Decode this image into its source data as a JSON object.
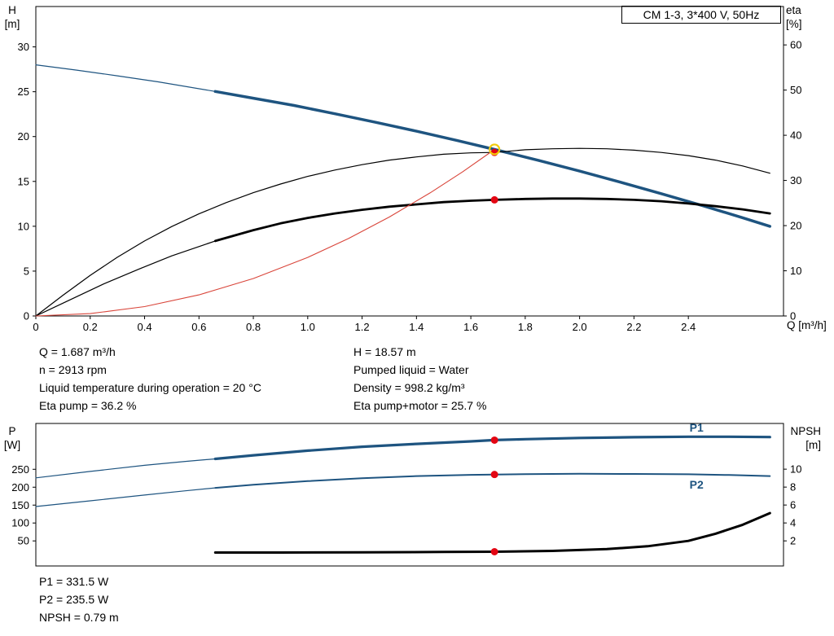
{
  "axis_labels": {
    "h": "H",
    "h_unit": "[m]",
    "eta": "eta",
    "eta_unit": "[%]",
    "q": "Q [m³/h]",
    "p": "P",
    "p_unit": "[W]",
    "npsh": "NPSH",
    "npsh_unit": "[m]"
  },
  "info_top": {
    "left": [
      "Q = 1.687 m³/h",
      "n = 2913 rpm",
      "Liquid temperature during operation = 20 °C",
      "Eta pump = 36.2 %"
    ],
    "right": [
      "H = 18.57 m",
      "Pumped liquid = Water",
      "Density = 998.2 kg/m³",
      "Eta pump+motor = 25.7 %"
    ]
  },
  "info_bottom": [
    "P1 = 331.5 W",
    "P2 = 235.5 W",
    "NPSH = 0.79 m"
  ],
  "colors": {
    "curve_blue": "#1e5480",
    "curve_black": "#000000",
    "curve_red": "#d9453a",
    "dot_red": "#e30613",
    "ring_yellow": "#f2cc0c"
  },
  "chart_data": [
    {
      "type": "line",
      "title": "CM 1-3, 3*400 V, 50Hz",
      "x_axis": {
        "min": 0,
        "max": 2.75,
        "label": "Q [m³/h]",
        "ticks": [
          [
            0,
            "0"
          ],
          [
            0.2,
            "0.2"
          ],
          [
            0.4,
            "0.4"
          ],
          [
            0.6,
            "0.6"
          ],
          [
            0.8,
            "0.8"
          ],
          [
            1,
            "1.0"
          ],
          [
            1.2,
            "1.2"
          ],
          [
            1.4,
            "1.4"
          ],
          [
            1.6,
            "1.6"
          ],
          [
            1.8,
            "1.8"
          ],
          [
            2,
            "2.0"
          ],
          [
            2.2,
            "2.2"
          ],
          [
            2.4,
            "2.4"
          ]
        ]
      },
      "y_left": {
        "min": 0,
        "max": 34.5,
        "label": "H [m]",
        "ticks": [
          [
            0,
            "0"
          ],
          [
            5,
            "5"
          ],
          [
            10,
            "10"
          ],
          [
            15,
            "15"
          ],
          [
            20,
            "20"
          ],
          [
            25,
            "25"
          ],
          [
            30,
            "30"
          ]
        ]
      },
      "y_right": {
        "min": 0,
        "max": 68.5,
        "label": "eta [%]",
        "ticks": [
          [
            0,
            "0"
          ],
          [
            10,
            "10"
          ],
          [
            20,
            "20"
          ],
          [
            30,
            "30"
          ],
          [
            40,
            "40"
          ],
          [
            50,
            "50"
          ],
          [
            60,
            "60"
          ]
        ]
      },
      "grid": false,
      "series": [
        {
          "name": "pump-curve-thin",
          "axis": "left",
          "color": "#1e5480",
          "width": 1.2,
          "points": [
            [
              0,
              28
            ],
            [
              0.15,
              27.41
            ],
            [
              0.3,
              26.77
            ],
            [
              0.45,
              26.1
            ],
            [
              0.66,
              25.03
            ]
          ]
        },
        {
          "name": "pump-curve",
          "axis": "left",
          "color": "#1e5480",
          "width": 3.5,
          "points": [
            [
              0.66,
              25.03
            ],
            [
              0.8,
              24.28
            ],
            [
              0.95,
              23.47
            ],
            [
              1.1,
              22.54
            ],
            [
              1.25,
              21.59
            ],
            [
              1.4,
              20.6
            ],
            [
              1.55,
              19.56
            ],
            [
              1.687,
              18.57
            ],
            [
              1.85,
              17.33
            ],
            [
              2.0,
              16.15
            ],
            [
              2.15,
              14.92
            ],
            [
              2.3,
              13.64
            ],
            [
              2.45,
              12.32
            ],
            [
              2.6,
              10.95
            ],
            [
              2.7,
              10.0
            ]
          ]
        },
        {
          "name": "eta-pump-curve",
          "axis": "right",
          "color": "#000000",
          "width": 1.2,
          "points": [
            [
              0,
              0
            ],
            [
              0.1,
              4.6
            ],
            [
              0.2,
              9.0
            ],
            [
              0.3,
              13.0
            ],
            [
              0.4,
              16.6
            ],
            [
              0.5,
              19.8
            ],
            [
              0.6,
              22.6
            ],
            [
              0.7,
              25.1
            ],
            [
              0.8,
              27.3
            ],
            [
              0.9,
              29.2
            ],
            [
              1.0,
              30.9
            ],
            [
              1.1,
              32.3
            ],
            [
              1.2,
              33.5
            ],
            [
              1.3,
              34.5
            ],
            [
              1.4,
              35.2
            ],
            [
              1.5,
              35.8
            ],
            [
              1.6,
              36.1
            ],
            [
              1.687,
              36.2
            ],
            [
              1.8,
              36.8
            ],
            [
              1.9,
              37.0
            ],
            [
              2.0,
              37.1
            ],
            [
              2.1,
              37.0
            ],
            [
              2.2,
              36.7
            ],
            [
              2.3,
              36.2
            ],
            [
              2.4,
              35.5
            ],
            [
              2.5,
              34.5
            ],
            [
              2.6,
              33.2
            ],
            [
              2.7,
              31.6
            ]
          ]
        },
        {
          "name": "eta-pump-motor-thin",
          "axis": "right",
          "color": "#000000",
          "width": 1.2,
          "points": [
            [
              0,
              0
            ],
            [
              0.12,
              3.4
            ],
            [
              0.25,
              7.1
            ],
            [
              0.38,
              10.4
            ],
            [
              0.5,
              13.3
            ],
            [
              0.66,
              16.6
            ]
          ]
        },
        {
          "name": "eta-pump-motor-curve",
          "axis": "right",
          "color": "#000000",
          "width": 2.8,
          "points": [
            [
              0.66,
              16.6
            ],
            [
              0.8,
              19.0
            ],
            [
              0.9,
              20.5
            ],
            [
              1.0,
              21.7
            ],
            [
              1.1,
              22.7
            ],
            [
              1.2,
              23.5
            ],
            [
              1.3,
              24.2
            ],
            [
              1.4,
              24.7
            ],
            [
              1.5,
              25.2
            ],
            [
              1.6,
              25.5
            ],
            [
              1.687,
              25.7
            ],
            [
              1.8,
              25.9
            ],
            [
              1.9,
              26.0
            ],
            [
              2.0,
              26.0
            ],
            [
              2.1,
              25.9
            ],
            [
              2.2,
              25.7
            ],
            [
              2.3,
              25.4
            ],
            [
              2.4,
              24.9
            ],
            [
              2.5,
              24.3
            ],
            [
              2.6,
              23.6
            ],
            [
              2.7,
              22.7
            ]
          ]
        },
        {
          "name": "system-curve",
          "axis": "left",
          "color": "#d9453a",
          "width": 1.1,
          "points": [
            [
              0,
              0
            ],
            [
              0.2,
              0.26
            ],
            [
              0.4,
              1.04
            ],
            [
              0.6,
              2.35
            ],
            [
              0.8,
              4.18
            ],
            [
              1.0,
              6.53
            ],
            [
              1.15,
              8.63
            ],
            [
              1.3,
              11.03
            ],
            [
              1.45,
              13.72
            ],
            [
              1.57,
              16.08
            ],
            [
              1.687,
              18.57
            ]
          ]
        }
      ],
      "markers": [
        {
          "name": "eta-pump-motor-duty-dot",
          "style": "dot",
          "x": 1.687,
          "y": 25.7,
          "axis": "right",
          "color": "#e30613"
        },
        {
          "name": "eta-pump-duty-dot",
          "style": "dot",
          "x": 1.687,
          "y": 36.2,
          "axis": "right",
          "color": "#e30613"
        },
        {
          "name": "duty-point-ring",
          "style": "ring",
          "x": 1.687,
          "y": 18.57,
          "axis": "left",
          "color": "#f2cc0c"
        }
      ],
      "duty_point": {
        "q": 1.687,
        "h": 18.57
      }
    },
    {
      "type": "line",
      "x_axis": {
        "min": 0,
        "max": 2.75,
        "label": "Q [m³/h]",
        "ticks": []
      },
      "y_left": {
        "min": -20,
        "max": 378,
        "label": "P [W]",
        "ticks": [
          [
            50,
            "50"
          ],
          [
            100,
            "100"
          ],
          [
            150,
            "150"
          ],
          [
            200,
            "200"
          ],
          [
            250,
            "250"
          ]
        ]
      },
      "y_right": {
        "min": -0.8,
        "max": 15.1,
        "label": "NPSH [m]",
        "ticks": [
          [
            2,
            "2"
          ],
          [
            4,
            "4"
          ],
          [
            6,
            "6"
          ],
          [
            8,
            "8"
          ],
          [
            10,
            "10"
          ]
        ]
      },
      "grid": false,
      "series": [
        {
          "name": "p1-curve-thin",
          "axis": "left",
          "color": "#1e5480",
          "width": 1.2,
          "points": [
            [
              0,
              226
            ],
            [
              0.2,
              244
            ],
            [
              0.4,
              261
            ],
            [
              0.55,
              272
            ],
            [
              0.66,
              279
            ]
          ]
        },
        {
          "name": "p1-curve",
          "axis": "left",
          "color": "#1e5480",
          "width": 3.2,
          "points": [
            [
              0.66,
              279
            ],
            [
              0.8,
              289
            ],
            [
              1.0,
              302
            ],
            [
              1.2,
              313
            ],
            [
              1.4,
              321
            ],
            [
              1.6,
              328
            ],
            [
              1.687,
              331.5
            ],
            [
              1.8,
              334
            ],
            [
              2.0,
              337.5
            ],
            [
              2.2,
              339.5
            ],
            [
              2.4,
              341
            ],
            [
              2.55,
              341
            ],
            [
              2.7,
              340
            ]
          ]
        },
        {
          "name": "p2-curve-thin",
          "axis": "left",
          "color": "#1e5480",
          "width": 1.2,
          "points": [
            [
              0,
              146
            ],
            [
              0.2,
              162
            ],
            [
              0.4,
              178
            ],
            [
              0.55,
              190
            ],
            [
              0.66,
              198
            ]
          ]
        },
        {
          "name": "p2-curve",
          "axis": "left",
          "color": "#1e5480",
          "width": 2,
          "points": [
            [
              0.66,
              198
            ],
            [
              0.8,
              207
            ],
            [
              1.0,
              217
            ],
            [
              1.2,
              225
            ],
            [
              1.4,
              231
            ],
            [
              1.6,
              234.5
            ],
            [
              1.687,
              235.5
            ],
            [
              1.8,
              236.5
            ],
            [
              2.0,
              237.5
            ],
            [
              2.2,
              237
            ],
            [
              2.4,
              236
            ],
            [
              2.55,
              234
            ],
            [
              2.7,
              231
            ]
          ]
        },
        {
          "name": "npsh-curve",
          "axis": "right",
          "color": "#000000",
          "width": 3,
          "points": [
            [
              0.66,
              0.7
            ],
            [
              0.9,
              0.7
            ],
            [
              1.2,
              0.72
            ],
            [
              1.5,
              0.76
            ],
            [
              1.687,
              0.79
            ],
            [
              1.9,
              0.88
            ],
            [
              2.1,
              1.08
            ],
            [
              2.25,
              1.4
            ],
            [
              2.4,
              2.0
            ],
            [
              2.5,
              2.8
            ],
            [
              2.6,
              3.8
            ],
            [
              2.7,
              5.1
            ]
          ]
        }
      ],
      "markers": [
        {
          "name": "p1-duty-dot",
          "style": "dot",
          "x": 1.687,
          "y": 331.5,
          "axis": "left",
          "color": "#e30613"
        },
        {
          "name": "p2-duty-dot",
          "style": "dot",
          "x": 1.687,
          "y": 235.5,
          "axis": "left",
          "color": "#e30613"
        },
        {
          "name": "npsh-duty-dot",
          "style": "dot",
          "x": 1.687,
          "y": 0.79,
          "axis": "right",
          "color": "#e30613"
        }
      ],
      "annotations": [
        {
          "text": "P1",
          "x": 2.43,
          "y": 355,
          "axis": "left",
          "color": "#1e5480"
        },
        {
          "text": "P2",
          "x": 2.43,
          "y": 196,
          "axis": "left",
          "color": "#1e5480"
        }
      ]
    }
  ]
}
